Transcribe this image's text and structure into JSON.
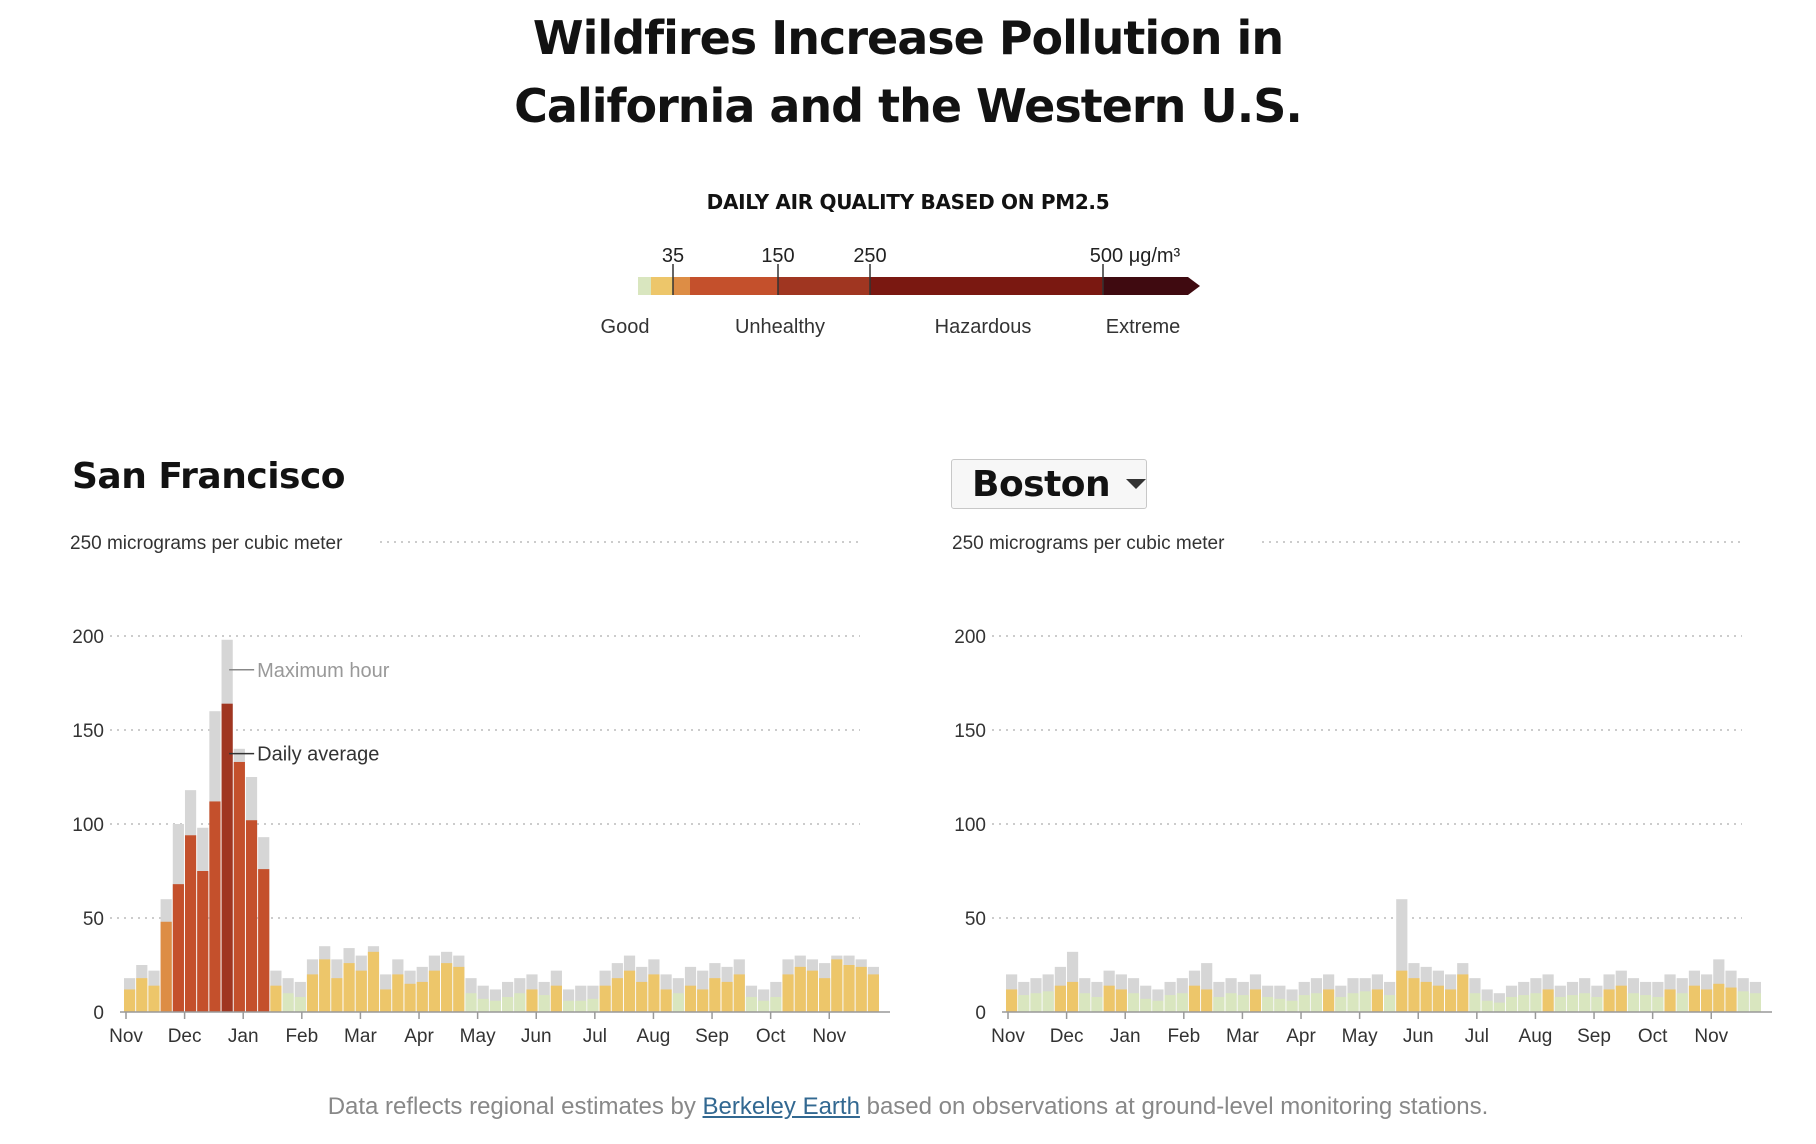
{
  "page": {
    "title_line1": "Wildfires Increase Pollution in",
    "title_line2": "California and the Western U.S.",
    "footnote_before": "Data reflects regional estimates by ",
    "footnote_link": "Berkeley Earth",
    "footnote_after": " based on observations at ground-level monitoring stations."
  },
  "legend": {
    "heading": "DAILY AIR QUALITY BASED ON PM2.5",
    "ticks": [
      "35",
      "150",
      "250",
      "500 μg/m³"
    ],
    "categories": [
      "Good",
      "Unhealthy",
      "Hazardous",
      "Extreme"
    ],
    "colors": {
      "good": "#d9e6bf",
      "moderate": "#edc66a",
      "unhealthy_sensitive": "#dd8d45",
      "unhealthy": "#c4502c",
      "very_unhealthy": "#a03621",
      "hazardous": "#7a1811",
      "extreme": "#3f0a10",
      "max_hour": "#d6d6d6"
    }
  },
  "chart_data": [
    {
      "type": "bar",
      "title": "San Francisco",
      "ylabel_top": "250 micrograms per cubic meter",
      "ylim": [
        0,
        250
      ],
      "yticks": [
        "0",
        "50",
        "100",
        "150",
        "200"
      ],
      "x_ticks": [
        "Nov",
        "Dec",
        "Jan",
        "Feb",
        "Mar",
        "Apr",
        "May",
        "Jun",
        "Jul",
        "Aug",
        "Sep",
        "Oct",
        "Nov"
      ],
      "annotations": [
        "Maximum hour",
        "Daily average"
      ],
      "daily_average_peak": 164,
      "maximum_hour_peak": 198,
      "series": [
        {
          "name": "Daily average",
          "values": [
            12,
            18,
            14,
            48,
            68,
            94,
            75,
            112,
            164,
            133,
            102,
            76,
            14,
            10,
            8,
            20,
            28,
            18,
            26,
            22,
            32,
            12,
            20,
            15,
            16,
            22,
            26,
            24,
            10,
            7,
            6,
            8,
            10,
            12,
            9,
            14,
            6,
            6,
            7,
            14,
            18,
            22,
            16,
            20,
            12,
            10,
            14,
            12,
            18,
            16,
            20,
            8,
            6,
            8,
            20,
            24,
            22,
            18,
            28,
            25,
            24,
            20
          ]
        },
        {
          "name": "Maximum hour",
          "values": [
            18,
            25,
            22,
            60,
            100,
            118,
            98,
            160,
            198,
            140,
            125,
            93,
            22,
            18,
            16,
            28,
            35,
            28,
            34,
            30,
            35,
            20,
            28,
            22,
            24,
            30,
            32,
            30,
            18,
            14,
            12,
            16,
            18,
            20,
            16,
            22,
            12,
            14,
            14,
            22,
            26,
            30,
            24,
            28,
            20,
            18,
            24,
            22,
            26,
            24,
            28,
            14,
            12,
            16,
            28,
            30,
            28,
            26,
            30,
            30,
            28,
            24
          ]
        }
      ]
    },
    {
      "type": "bar",
      "title": "Boston",
      "ylabel_top": "250 micrograms per cubic meter",
      "ylim": [
        0,
        250
      ],
      "yticks": [
        "0",
        "50",
        "100",
        "150",
        "200"
      ],
      "x_ticks": [
        "Nov",
        "Dec",
        "Jan",
        "Feb",
        "Mar",
        "Apr",
        "May",
        "Jun",
        "Jul",
        "Aug",
        "Sep",
        "Oct",
        "Nov"
      ],
      "series": [
        {
          "name": "Daily average",
          "values": [
            12,
            9,
            10,
            11,
            14,
            16,
            10,
            8,
            14,
            12,
            10,
            7,
            6,
            9,
            10,
            14,
            12,
            8,
            10,
            9,
            12,
            8,
            7,
            6,
            9,
            10,
            12,
            8,
            10,
            11,
            12,
            9,
            22,
            18,
            16,
            14,
            12,
            20,
            10,
            6,
            5,
            8,
            9,
            10,
            12,
            8,
            9,
            10,
            8,
            12,
            14,
            10,
            9,
            8,
            12,
            10,
            14,
            12,
            15,
            13,
            11,
            10
          ]
        },
        {
          "name": "Maximum hour",
          "values": [
            20,
            16,
            18,
            20,
            24,
            32,
            18,
            16,
            22,
            20,
            18,
            14,
            12,
            16,
            18,
            22,
            26,
            16,
            18,
            16,
            20,
            14,
            14,
            12,
            16,
            18,
            20,
            14,
            18,
            18,
            20,
            16,
            60,
            26,
            24,
            22,
            20,
            26,
            18,
            12,
            10,
            14,
            16,
            18,
            20,
            14,
            16,
            18,
            14,
            20,
            22,
            18,
            16,
            16,
            20,
            18,
            22,
            20,
            28,
            22,
            18,
            16
          ]
        }
      ]
    }
  ],
  "city_selector": {
    "selected": "Boston"
  }
}
